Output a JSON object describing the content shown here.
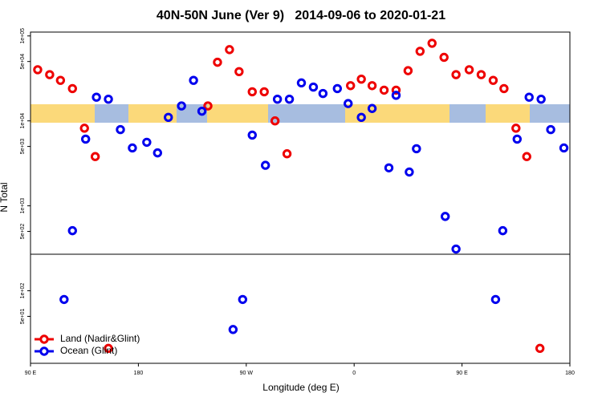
{
  "chart_data": {
    "type": "scatter",
    "title": "40N-50N June (Ver 9)   2014-09-06 to 2020-01-21",
    "x_label": "Longitude (deg E)",
    "y_label": "N Total",
    "log_y": true,
    "legend": "bottomleft",
    "xlim": [
      90,
      540
    ],
    "xticks": [
      {
        "value": 90,
        "label": "90 E"
      },
      180,
      {
        "value": 270,
        "label": "90 W"
      },
      {
        "value": 360,
        "label": "0"
      },
      {
        "value": 450,
        "label": "90 E"
      },
      {
        "value": 540,
        "label": "180"
      }
    ],
    "ylim": [
      14,
      111000
    ],
    "yticks": [
      {
        "value": 100000,
        "label": "1e+05"
      },
      {
        "value": 50000,
        "label": "5e+04"
      },
      {
        "value": 10000,
        "label": "1e+04"
      },
      {
        "value": 5000,
        "label": "5e+03"
      },
      {
        "value": 1000,
        "label": "1e+03"
      },
      {
        "value": 500,
        "label": "5e+02"
      },
      {
        "value": 100,
        "label": "1e+02"
      },
      {
        "value": 50,
        "label": "5e+01"
      }
    ],
    "series": [
      {
        "name": "Land (Nadir&Glint)",
        "color": "#ee0000",
        "x": [
          96,
          106,
          115,
          125,
          135,
          144,
          238,
          246,
          256,
          264,
          275,
          285,
          294,
          304,
          357,
          366,
          375,
          385,
          395,
          405,
          415,
          425,
          435,
          445,
          456,
          466,
          476,
          485,
          495,
          504,
          155,
          515
        ],
        "values": [
          40000,
          35000,
          30000,
          24000,
          8200,
          3800,
          15000,
          49000,
          69000,
          38000,
          22000,
          22000,
          10000,
          4100,
          26000,
          31000,
          26000,
          23000,
          23000,
          39000,
          66000,
          82000,
          56000,
          35000,
          40000,
          35000,
          30000,
          24000,
          8200,
          3800,
          21,
          21
        ]
      },
      {
        "name": "Ocean (Glint)",
        "color": "#0000ee",
        "x": [
          125,
          136,
          145,
          155,
          165,
          175,
          187,
          196,
          205,
          216,
          226,
          233,
          275,
          286,
          296,
          306,
          316,
          326,
          334,
          346,
          355,
          366,
          375,
          389,
          395,
          406,
          412,
          436,
          445,
          484,
          496,
          506,
          516,
          524,
          535,
          118,
          259,
          267,
          478
        ],
        "values": [
          510,
          6100,
          19000,
          18000,
          7900,
          4800,
          5600,
          4200,
          11000,
          15000,
          30000,
          13000,
          6800,
          3000,
          18000,
          18000,
          28000,
          25000,
          21000,
          24000,
          16000,
          11000,
          14000,
          2800,
          20000,
          2500,
          4700,
          750,
          310,
          510,
          6100,
          19000,
          18000,
          7900,
          4800,
          79,
          35,
          79,
          79
        ]
      }
    ]
  }
}
